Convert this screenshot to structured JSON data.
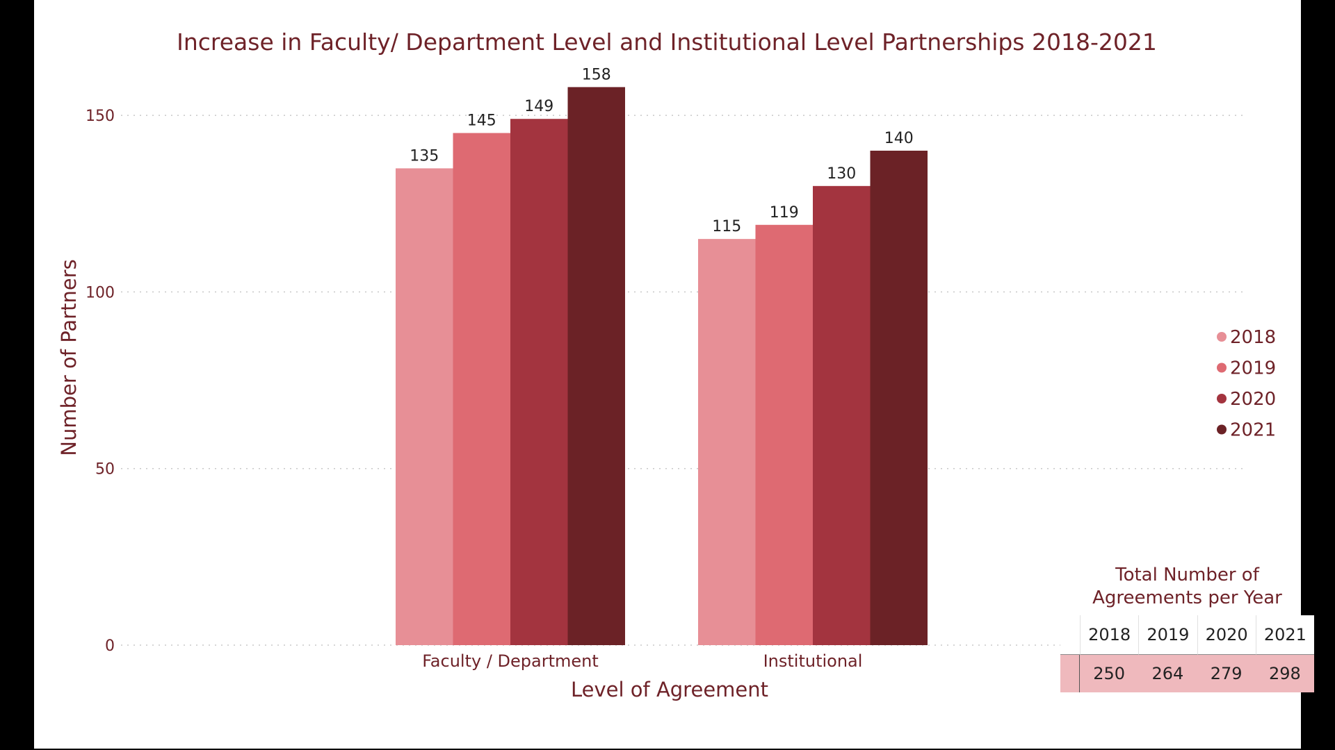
{
  "chart_data": {
    "type": "bar",
    "title": "Increase in Faculty/ Department Level and Institutional Level Partnerships 2018-2021",
    "xlabel": "Level of Agreement",
    "ylabel": "Number of Partners",
    "categories": [
      "Faculty / Department",
      "Institutional"
    ],
    "series": [
      {
        "name": "2018",
        "values": [
          135,
          115
        ],
        "color": "#e78f96"
      },
      {
        "name": "2019",
        "values": [
          145,
          119
        ],
        "color": "#de6a72"
      },
      {
        "name": "2020",
        "values": [
          149,
          130
        ],
        "color": "#a3343f"
      },
      {
        "name": "2021",
        "values": [
          158,
          140
        ],
        "color": "#6b2226"
      }
    ],
    "ylim": [
      0,
      163
    ],
    "yticks": [
      0,
      50,
      100,
      150
    ],
    "grid": true,
    "legend": "right"
  },
  "totals_table": {
    "title_line1": "Total Number of",
    "title_line2": "Agreements per Year",
    "years": [
      "2018",
      "2019",
      "2020",
      "2021"
    ],
    "values": [
      "250",
      "264",
      "279",
      "298"
    ]
  }
}
